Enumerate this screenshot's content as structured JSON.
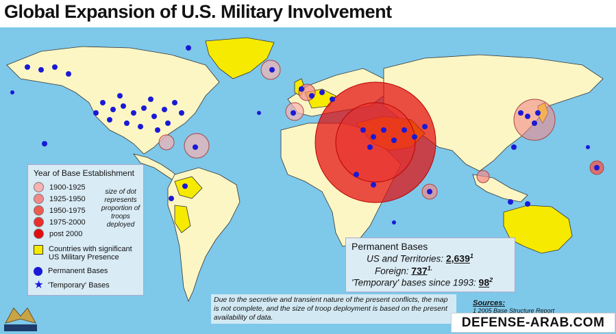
{
  "title": "Global Expansion of U.S. Military Involvement",
  "legend": {
    "heading": "Year of Base Establishment",
    "periods": [
      {
        "label": "1900-1925",
        "color": "#f7b2b2"
      },
      {
        "label": "1925-1950",
        "color": "#f28a8a"
      },
      {
        "label": "1950-1975",
        "color": "#ee5b50"
      },
      {
        "label": "1975-2000",
        "color": "#ea2e2b"
      },
      {
        "label": "post 2000",
        "color": "#e20d0d"
      }
    ],
    "size_note": "size of dot represents proportion of troops deployed",
    "countries_label": "Countries with significant US Military Presence",
    "permanent_label": "Permanent Bases",
    "temporary_label": "'Temporary' Bases"
  },
  "permanent_bases": {
    "heading": "Permanent Bases",
    "us_label": "US and Territories:",
    "us_value": "2,639",
    "us_note": "1",
    "foreign_label": "Foreign:",
    "foreign_value": "737",
    "foreign_note": "1.",
    "temp_label": "'Temporary' bases since 1993:",
    "temp_value": "98",
    "temp_note": "2"
  },
  "disclaimer": "Due to the secretive and transient nature of the present conflicts, the map is not complete, and the size of troop deployment is based on the present availability of data.",
  "sources": {
    "heading": "Sources:",
    "line1": "1 2005 Base Structure Report"
  },
  "watermark": "DEFENSE-ARAB.COM",
  "colors": {
    "ocean": "#7ec8ea",
    "land": "#fbf6c4",
    "presence": "#f6ea00",
    "base": "#1a1ad6"
  }
}
